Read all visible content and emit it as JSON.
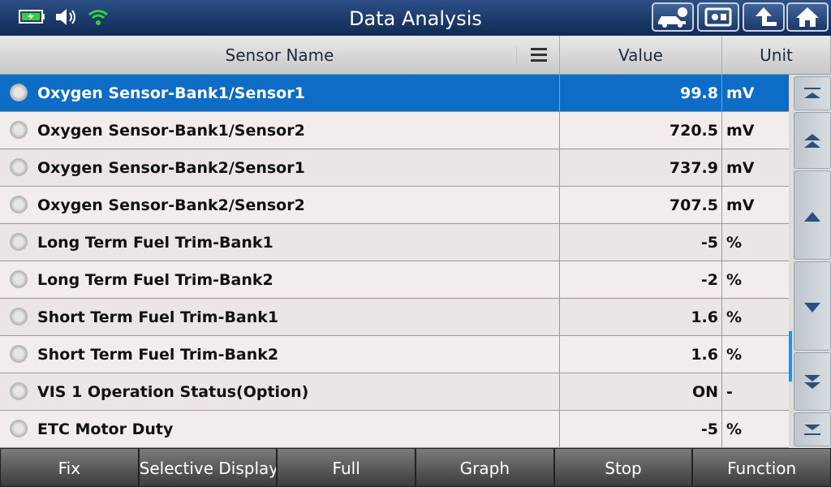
{
  "header": {
    "title": "Data Analysis"
  },
  "table": {
    "columns": [
      "Sensor Name",
      "Value",
      "Unit"
    ],
    "rows": [
      [
        "Oxygen Sensor-Bank1/Sensor1",
        "99.8",
        "mV"
      ],
      [
        "Oxygen Sensor-Bank1/Sensor2",
        "720.5",
        "mV"
      ],
      [
        "Oxygen Sensor-Bank2/Sensor1",
        "737.9",
        "mV"
      ],
      [
        "Oxygen Sensor-Bank2/Sensor2",
        "707.5",
        "mV"
      ],
      [
        "Long Term Fuel Trim-Bank1",
        "-5",
        "%"
      ],
      [
        "Long Term Fuel Trim-Bank2",
        "-2",
        "%"
      ],
      [
        "Short Term Fuel Trim-Bank1",
        "1.6",
        "%"
      ],
      [
        "Short Term Fuel Trim-Bank2",
        "1.6",
        "%"
      ],
      [
        "VIS 1 Operation Status(Option)",
        "ON",
        "-"
      ],
      [
        "ETC Motor Duty",
        "-5",
        "%"
      ]
    ]
  },
  "footer": {
    "buttons": [
      "Fix",
      "Selective Display",
      "Full",
      "Graph",
      "Stop",
      "Function"
    ]
  }
}
